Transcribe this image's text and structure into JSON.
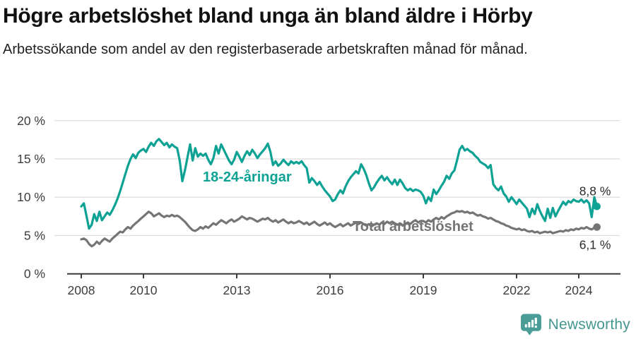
{
  "title": "Högre arbetslöshet bland unga än bland äldre i Hörby",
  "subtitle": "Arbetssökande som andel av den registerbaserade arbetskraften månad för månad.",
  "footer": {
    "brand": "Newsworthy"
  },
  "colors": {
    "young_line": "#0ea294",
    "total_line": "#757575",
    "grid": "#dcdcdc",
    "axis": "#3a3a3a",
    "logo": "#4a9d96"
  },
  "chart_data": {
    "type": "line",
    "title": "Högre arbetslöshet bland unga än bland äldre i Hörby",
    "subtitle": "Arbetssökande som andel av den registerbaserade arbetskraften månad för månad.",
    "unit": "%",
    "frequency": "monthly",
    "x_start": "2008-01",
    "x_end": "2024-08",
    "ylim": [
      0,
      20
    ],
    "grid": true,
    "axis_color": "#3a3a3a",
    "grid_color": "#dcdcdc",
    "y_ticks": [
      {
        "value": 20,
        "label": "20 %"
      },
      {
        "value": 15,
        "label": "15 %"
      },
      {
        "value": 10,
        "label": "10 %"
      },
      {
        "value": 5,
        "label": "5 %"
      },
      {
        "value": 0,
        "label": "0 %"
      }
    ],
    "x_ticks": [
      {
        "year": 2008,
        "label": "2008"
      },
      {
        "year": 2010,
        "label": "2010"
      },
      {
        "year": 2013,
        "label": "2013"
      },
      {
        "year": 2016,
        "label": "2016"
      },
      {
        "year": 2019,
        "label": "2019"
      },
      {
        "year": 2022,
        "label": "2022"
      },
      {
        "year": 2024,
        "label": "2024"
      }
    ],
    "series": [
      {
        "id": "young",
        "name": "18-24-åringar",
        "label": "18-24-åringar",
        "color": "#0ea294",
        "end_label": "8,8 %",
        "end_value": 8.8,
        "values": [
          8.8,
          9.2,
          7.6,
          5.9,
          6.4,
          7.8,
          6.9,
          8.1,
          7.0,
          7.5,
          8.0,
          7.7,
          8.3,
          9.0,
          9.8,
          10.8,
          11.9,
          13.0,
          14.1,
          15.0,
          15.6,
          15.1,
          15.8,
          16.1,
          16.3,
          15.9,
          16.6,
          17.1,
          16.7,
          17.3,
          17.6,
          17.2,
          16.8,
          17.1,
          16.5,
          16.9,
          16.6,
          16.4,
          14.8,
          12.1,
          13.5,
          15.2,
          16.9,
          14.8,
          16.4,
          15.3,
          15.7,
          15.4,
          15.7,
          14.9,
          14.3,
          15.1,
          16.7,
          15.7,
          16.9,
          16.2,
          15.5,
          14.8,
          14.3,
          14.9,
          15.9,
          15.3,
          14.6,
          15.4,
          16.0,
          15.5,
          16.2,
          15.7,
          15.1,
          15.6,
          16.0,
          16.4,
          17.0,
          15.9,
          14.2,
          14.7,
          14.1,
          14.4,
          14.9,
          14.5,
          14.2,
          14.7,
          14.4,
          14.6,
          14.4,
          14.7,
          14.2,
          13.8,
          11.9,
          12.5,
          12.1,
          11.6,
          12.0,
          11.4,
          10.9,
          10.5,
          10.1,
          9.5,
          9.7,
          10.4,
          10.9,
          10.5,
          11.4,
          12.1,
          12.6,
          13.0,
          13.4,
          13.1,
          14.3,
          13.7,
          12.9,
          11.8,
          10.9,
          11.3,
          11.9,
          12.4,
          12.8,
          12.2,
          12.6,
          12.1,
          11.7,
          12.3,
          11.6,
          12.3,
          11.8,
          11.2,
          10.9,
          11.1,
          10.8,
          11.0,
          10.9,
          10.7,
          10.2,
          9.2,
          10.0,
          9.5,
          11.0,
          10.4,
          10.9,
          11.5,
          12.0,
          12.8,
          12.4,
          13.1,
          13.5,
          14.8,
          16.2,
          16.7,
          16.1,
          16.3,
          16.0,
          15.8,
          15.4,
          15.1,
          14.6,
          14.4,
          14.2,
          13.8,
          14.2,
          11.7,
          11.2,
          10.9,
          11.4,
          10.5,
          10.1,
          9.4,
          10.0,
          9.6,
          9.1,
          9.7,
          9.3,
          8.9,
          8.5,
          7.4,
          8.5,
          7.8,
          9.1,
          8.2,
          7.5,
          6.9,
          8.5,
          7.3,
          8.6,
          7.5,
          8.2,
          8.8,
          9.4,
          9.0,
          9.5,
          9.3,
          9.7,
          9.5,
          9.4,
          9.7,
          9.3,
          9.6,
          9.2,
          7.4,
          10.0,
          8.8
        ]
      },
      {
        "id": "total",
        "name": "Total arbetslöshet",
        "label": "Total arbetslöshet",
        "color": "#757575",
        "end_label": "6,1 %",
        "end_value": 6.1,
        "values": [
          4.5,
          4.6,
          4.4,
          3.9,
          3.6,
          3.8,
          4.2,
          3.9,
          4.3,
          4.6,
          4.4,
          4.2,
          4.6,
          4.9,
          5.2,
          5.5,
          5.4,
          5.8,
          6.1,
          5.9,
          6.3,
          6.6,
          6.9,
          7.2,
          7.5,
          7.8,
          8.1,
          7.9,
          7.5,
          7.7,
          7.9,
          7.6,
          7.4,
          7.6,
          7.5,
          7.7,
          7.5,
          7.6,
          7.4,
          7.1,
          6.8,
          6.4,
          6.0,
          5.7,
          5.6,
          5.8,
          6.1,
          5.9,
          6.2,
          6.0,
          6.3,
          6.6,
          6.4,
          6.7,
          7.0,
          6.8,
          6.6,
          6.9,
          7.1,
          6.8,
          7.0,
          7.2,
          7.5,
          7.3,
          7.1,
          7.3,
          7.2,
          7.0,
          6.8,
          7.0,
          7.2,
          7.1,
          7.3,
          7.0,
          6.8,
          7.0,
          6.7,
          6.9,
          7.1,
          6.8,
          6.6,
          6.8,
          6.6,
          6.7,
          6.9,
          6.7,
          6.5,
          6.7,
          6.4,
          6.6,
          6.8,
          6.5,
          6.3,
          6.5,
          6.7,
          6.4,
          6.6,
          6.3,
          6.1,
          6.3,
          6.5,
          6.2,
          6.4,
          6.6,
          6.3,
          6.5,
          6.7,
          6.5,
          6.7,
          6.5,
          6.3,
          6.5,
          6.2,
          6.4,
          6.6,
          6.4,
          6.7,
          6.5,
          6.8,
          6.6,
          6.8,
          6.6,
          6.4,
          6.6,
          6.3,
          6.5,
          6.7,
          6.5,
          6.8,
          7.0,
          6.7,
          6.9,
          6.9,
          6.7,
          7.0,
          6.8,
          7.1,
          7.3,
          7.1,
          7.4,
          7.2,
          7.5,
          7.7,
          7.9,
          8.0,
          8.2,
          8.1,
          8.2,
          8.0,
          8.1,
          7.9,
          8.0,
          7.8,
          7.6,
          7.7,
          7.5,
          7.4,
          7.2,
          7.3,
          7.1,
          6.9,
          6.8,
          6.6,
          6.5,
          6.3,
          6.2,
          6.0,
          5.9,
          5.8,
          5.9,
          5.7,
          5.8,
          5.6,
          5.5,
          5.6,
          5.4,
          5.5,
          5.3,
          5.4,
          5.5,
          5.4,
          5.5,
          5.3,
          5.4,
          5.5,
          5.6,
          5.5,
          5.7,
          5.6,
          5.8,
          5.7,
          5.9,
          5.8,
          6.0,
          5.9,
          6.1,
          5.9,
          5.8,
          6.0,
          6.1
        ]
      }
    ]
  }
}
